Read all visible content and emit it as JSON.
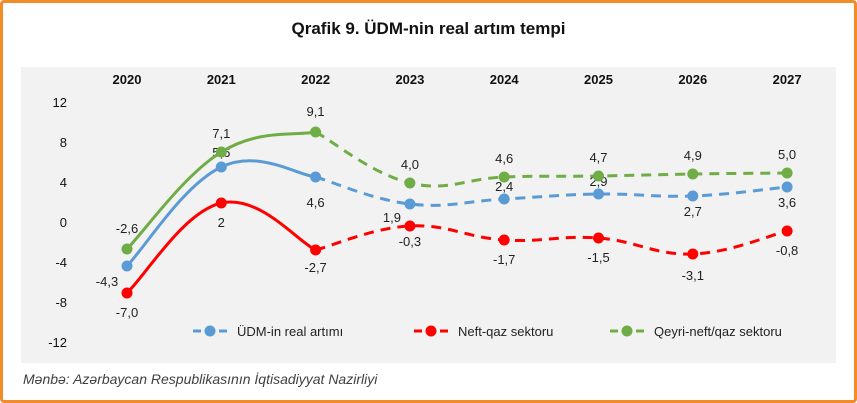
{
  "title": "Qrafik 9. ÜDM-nin real artım tempi",
  "source": "Mənbə: Azərbaycan Respublikasının İqtisadiyyat Nazirliyi",
  "chart_data": {
    "type": "line",
    "title": "Qrafik 9. ÜDM-nin real artım tempi",
    "x": [
      "2020",
      "2021",
      "2022",
      "2023",
      "2024",
      "2025",
      "2026",
      "2027"
    ],
    "x_axis_position": "top",
    "ylim": [
      -12,
      12
    ],
    "yticks": [
      12,
      8,
      4,
      0,
      -4,
      -8,
      -12
    ],
    "grid": false,
    "legend_position": "bottom",
    "projection_starts_after": "2022",
    "series": [
      {
        "name": "ÜDM-in real artımı",
        "color": "#5b9bd5",
        "values": [
          -4.3,
          5.6,
          4.6,
          1.9,
          2.4,
          2.9,
          2.7,
          3.6
        ],
        "labels": [
          "-4,3",
          "5,6",
          "4,6",
          "1,9",
          "2,4",
          "2,9",
          "2,7",
          "3,6"
        ]
      },
      {
        "name": "Neft-qaz sektoru",
        "color": "#ff0000",
        "values": [
          -7.0,
          2,
          -2.7,
          -0.3,
          -1.7,
          -1.5,
          -3.1,
          -0.8
        ],
        "labels": [
          "-7,0",
          "2",
          "-2,7",
          "-0,3",
          "-1,7",
          "-1,5",
          "-3,1",
          "-0,8"
        ]
      },
      {
        "name": "Qeyri-neft/qaz sektoru",
        "color": "#70ad47",
        "values": [
          -2.6,
          7.1,
          9.1,
          4.0,
          4.6,
          4.7,
          4.9,
          5.0
        ],
        "labels": [
          "-2,6",
          "7,1",
          "9,1",
          "4,0",
          "4,6",
          "4,7",
          "4,9",
          "5,0"
        ]
      }
    ]
  }
}
